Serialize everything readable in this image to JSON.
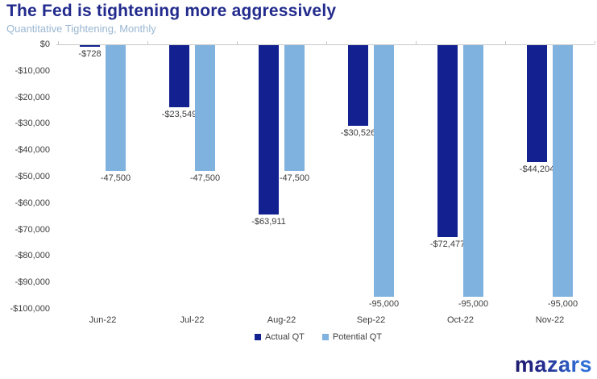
{
  "header": {
    "title": "The Fed is tightening more aggressively",
    "subtitle": "Quantitative Tightening, Monthly"
  },
  "chart_data": {
    "type": "bar",
    "categories": [
      "Jun-22",
      "Jul-22",
      "Aug-22",
      "Sep-22",
      "Oct-22",
      "Nov-22"
    ],
    "series": [
      {
        "name": "Actual QT",
        "color": "#12218f",
        "values": [
          -728,
          -23549,
          -63911,
          -30526,
          -72477,
          -44204
        ],
        "data_labels": [
          "-$728",
          "-$23,549",
          "-$63,911",
          "-$30,526",
          "-$72,477",
          "-$44,204"
        ]
      },
      {
        "name": "Potential QT",
        "color": "#7fb2de",
        "values": [
          -47500,
          -47500,
          -47500,
          -95000,
          -95000,
          -95000
        ],
        "data_labels": [
          "-47,500",
          "-47,500",
          "-47,500",
          "-95,000",
          "-95,000",
          "-95,000"
        ]
      }
    ],
    "title": "The Fed is tightening more aggressively",
    "subtitle": "Quantitative Tightening, Monthly",
    "xlabel": "",
    "ylabel": "",
    "ylim": [
      -100000,
      0
    ],
    "ytick_step": 10000,
    "ytick_labels": [
      "$0",
      "-$10,000",
      "-$20,000",
      "-$30,000",
      "-$40,000",
      "-$50,000",
      "-$60,000",
      "-$70,000",
      "-$80,000",
      "-$90,000",
      "-$100,000"
    ],
    "grid": false,
    "legend_position": "bottom"
  },
  "legend": {
    "items": [
      {
        "label": "Actual QT",
        "color": "#12218f"
      },
      {
        "label": "Potential QT",
        "color": "#7fb2de"
      }
    ]
  },
  "branding": {
    "logo_text": "mazars",
    "logo_color_start": "#1e1a6e",
    "logo_color_end": "#2f6fd6"
  },
  "colors": {
    "title": "#222b8d",
    "subtitle": "#9ab7d2",
    "axis_line": "#c9c9c9",
    "label_text": "#3d3d3d"
  }
}
